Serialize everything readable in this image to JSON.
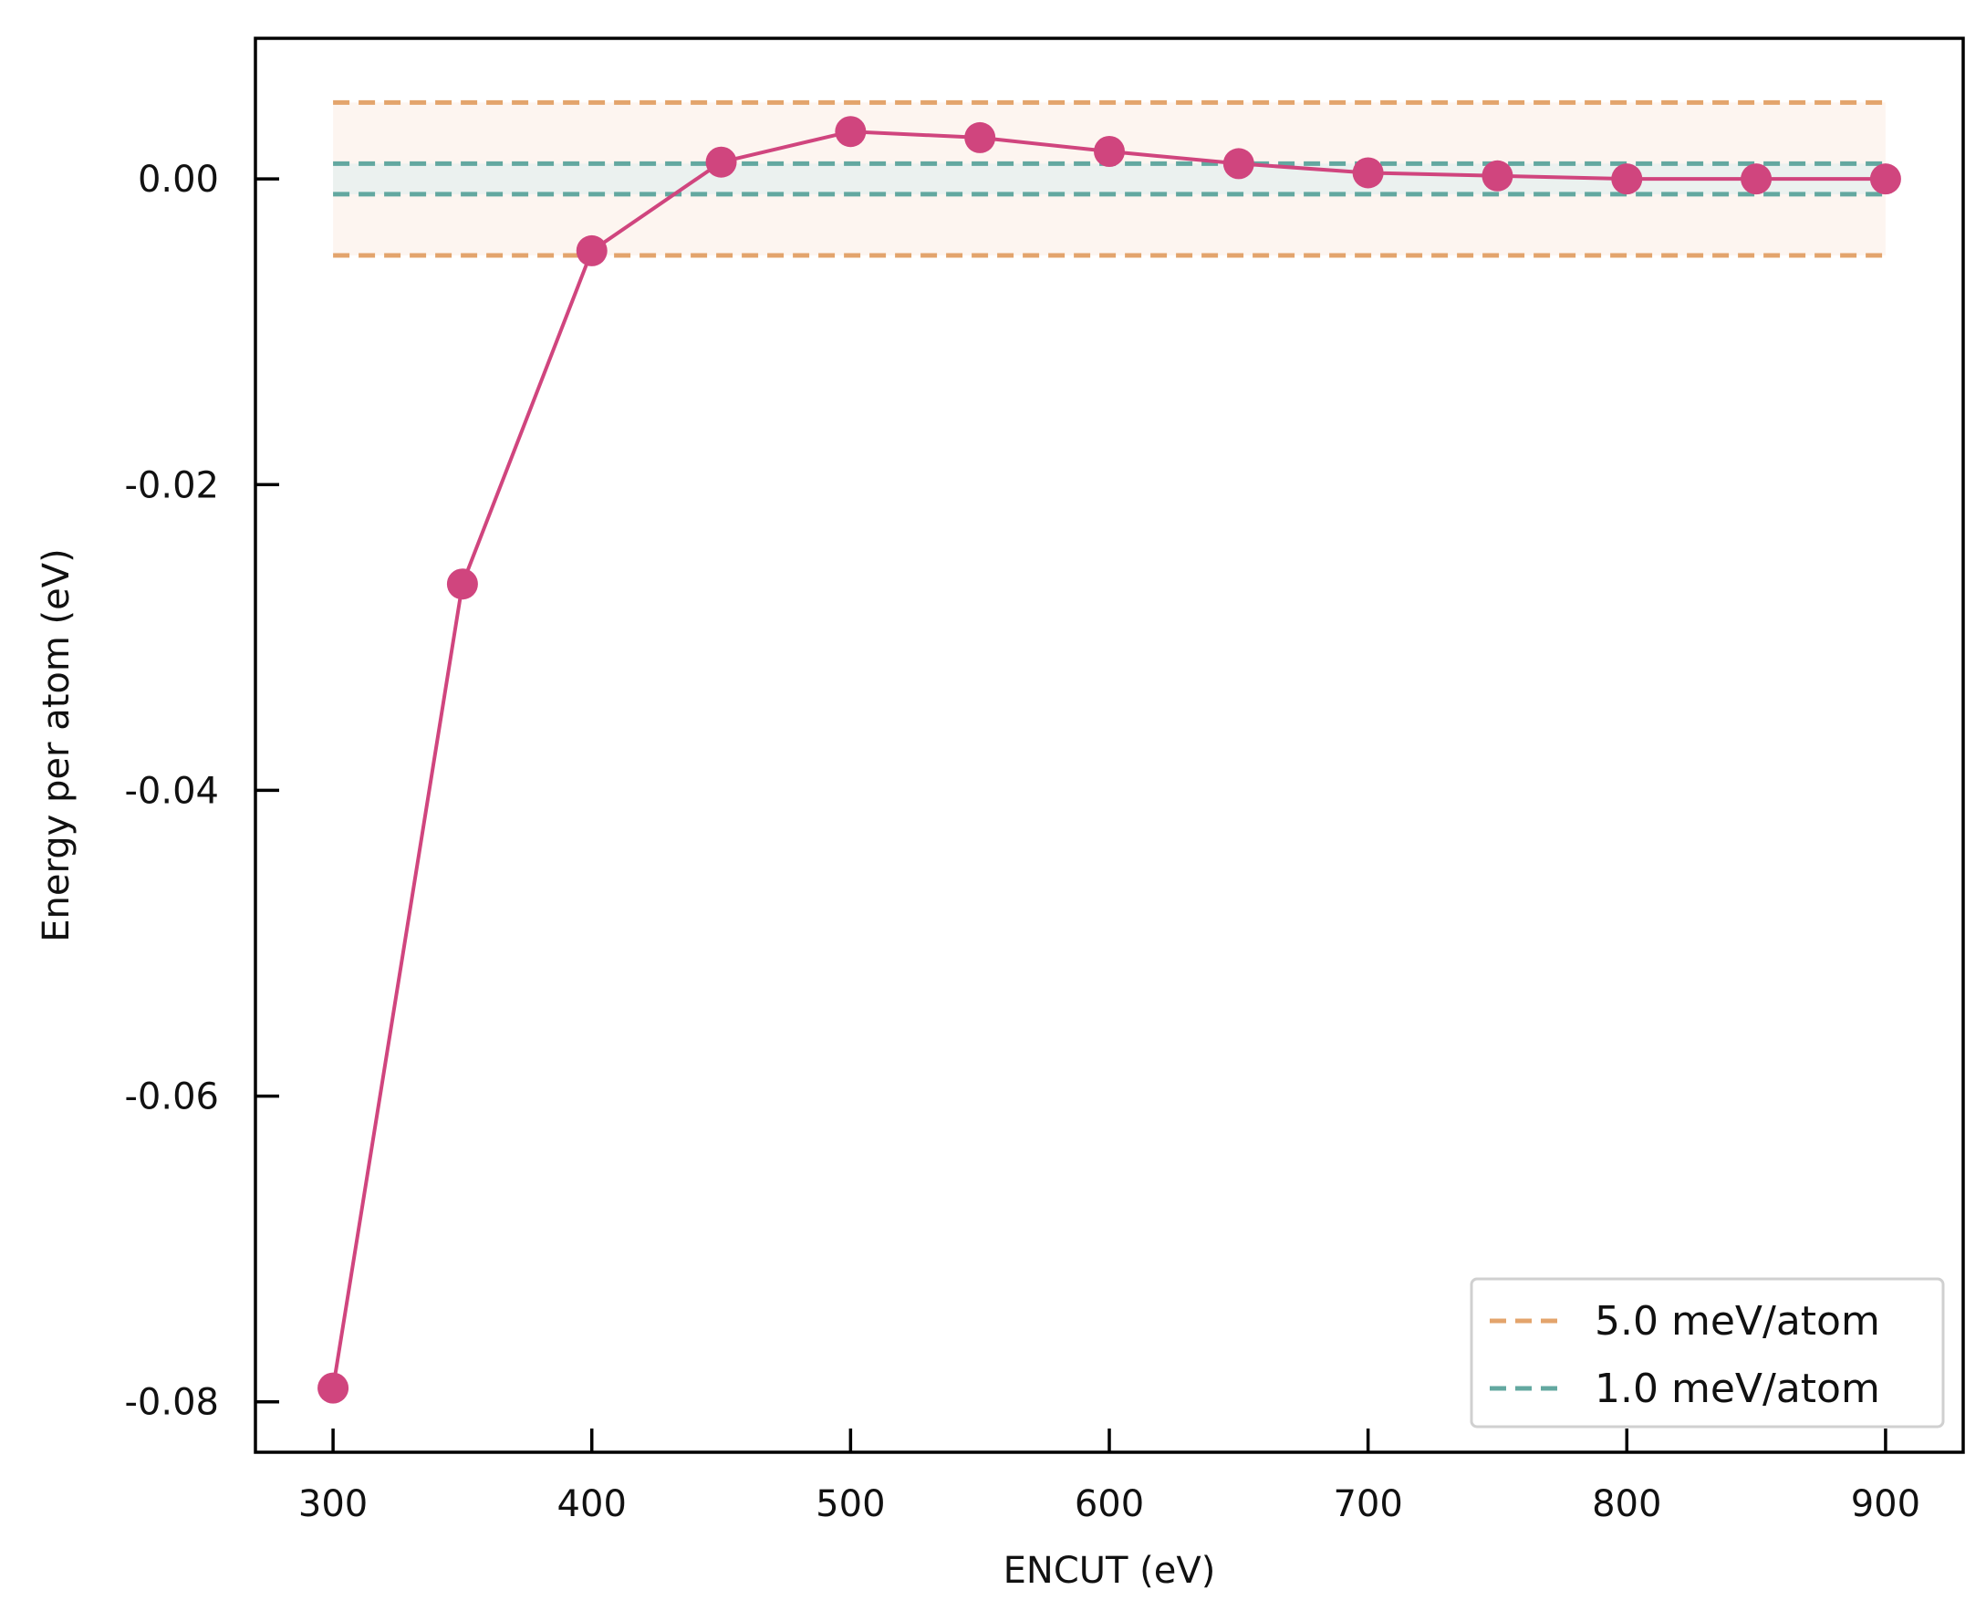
{
  "chart_data": {
    "type": "line",
    "title": "",
    "xlabel": "ENCUT (eV)",
    "ylabel": "Energy per atom (eV)",
    "xlim": [
      270,
      930
    ],
    "ylim": [
      -0.0833,
      0.0092
    ],
    "xticks": [
      300,
      400,
      500,
      600,
      700,
      800,
      900
    ],
    "yticks": [
      0.0,
      -0.02,
      -0.04,
      -0.06,
      -0.08
    ],
    "xtick_labels": [
      "300",
      "400",
      "500",
      "600",
      "700",
      "800",
      "900"
    ],
    "ytick_labels": [
      "0.00",
      "-0.02",
      "-0.04",
      "-0.06",
      "-0.08"
    ],
    "grid": false,
    "legend_position": "bottom-right",
    "series": [
      {
        "color": "#d0457e",
        "marker": "circle",
        "x": [
          300,
          350,
          400,
          450,
          500,
          550,
          600,
          650,
          700,
          750,
          800,
          850,
          900
        ],
        "y": [
          -0.0791,
          -0.0265,
          -0.0047,
          0.0011,
          0.0031,
          0.0027,
          0.0018,
          0.001,
          0.0004,
          0.0002,
          0.0,
          0.0,
          0.0
        ]
      }
    ],
    "threshold_bands": [
      {
        "name": "5.0 meV/atom",
        "value": 0.005,
        "color": "#e3a46c",
        "fill": "#fdf3ec"
      },
      {
        "name": "1.0 meV/atom",
        "value": 0.001,
        "color": "#63a8a0",
        "fill": "#e6f0ef"
      }
    ],
    "band_x_range": [
      300,
      900
    ]
  }
}
